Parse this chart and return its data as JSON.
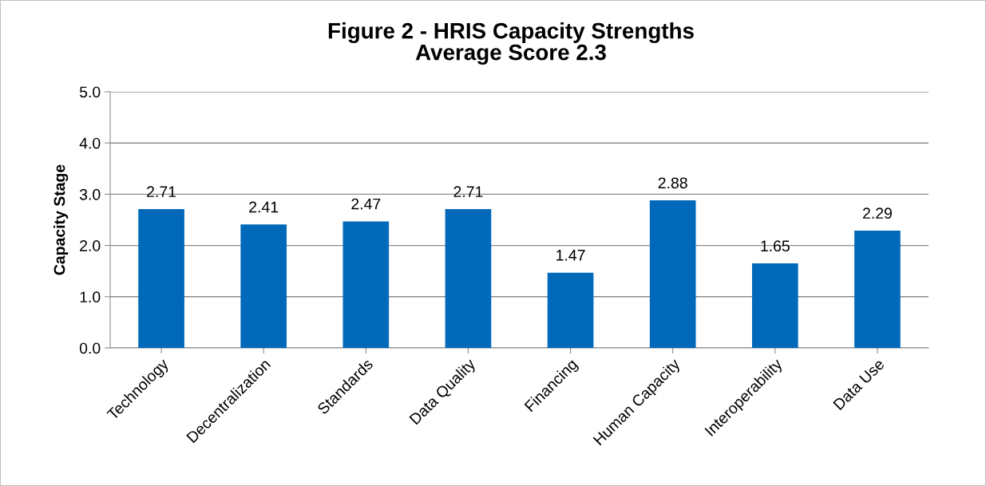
{
  "chart_data": {
    "type": "bar",
    "title": "Figure 2 - HRIS Capacity Strengths\nAverage Score 2.3",
    "ylabel": "Capacity Stage",
    "categories": [
      "Technology",
      "Decentralization",
      "Standards",
      "Data Quality",
      "Financing",
      "Human Capacity",
      "Interoperability",
      "Data Use"
    ],
    "values": [
      2.71,
      2.41,
      2.47,
      2.71,
      1.47,
      2.88,
      1.65,
      2.29
    ],
    "color": "#0069b9",
    "ylim": [
      0,
      5
    ],
    "yticks": [
      {
        "value": 0,
        "label": "0.0"
      },
      {
        "value": 1,
        "label": "1.0"
      },
      {
        "value": 2,
        "label": "2.0"
      },
      {
        "value": 3,
        "label": "3.0"
      },
      {
        "value": 4,
        "label": "4.0"
      },
      {
        "value": 5,
        "label": "5.0"
      }
    ],
    "grid": "y",
    "data_labels": true
  }
}
